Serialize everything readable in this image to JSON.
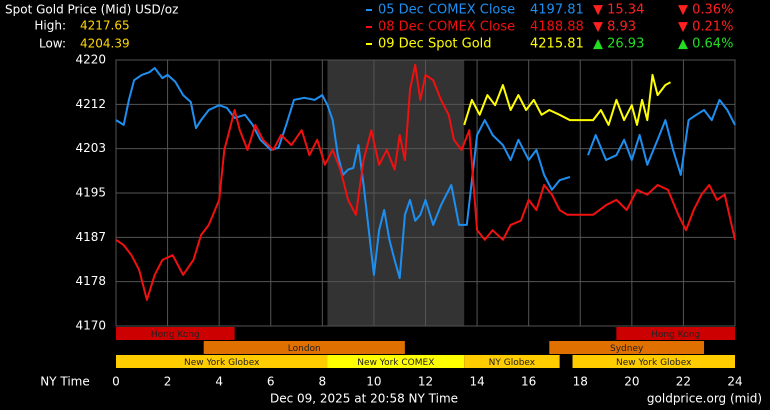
{
  "chart_data": {
    "type": "line",
    "title": "Spot Gold Price (Mid) USD/oz",
    "high_label": "High:",
    "high": 4217.65,
    "low_label": "Low:",
    "low": 4204.39,
    "x_label": "NY Time",
    "footer_date": "Dec 09, 2025 at 20:58 NY Time",
    "source": "goldprice.org (mid)",
    "xlim": [
      0,
      24
    ],
    "xticks": [
      0,
      2,
      4,
      6,
      8,
      10,
      12,
      14,
      16,
      18,
      20,
      22,
      24
    ],
    "ylim": [
      4170,
      4220
    ],
    "yticks": [
      4170,
      {
        "value": 4178.33,
        "label": "4178"
      },
      {
        "value": 4186.67,
        "label": "4187"
      },
      4195,
      {
        "value": 4203.33,
        "label": "4203"
      },
      {
        "value": 4211.67,
        "label": "4212"
      },
      4220
    ],
    "grid": true,
    "sessions": [
      {
        "name": "Hong Kong",
        "row": 0,
        "start": 0,
        "end": 4.6,
        "color": "#cc0000"
      },
      {
        "name": "Hong Kong",
        "row": 0,
        "start": 19.4,
        "end": 24,
        "color": "#cc0000"
      },
      {
        "name": "London",
        "row": 1,
        "start": 3.4,
        "end": 11.2,
        "color": "#e07000"
      },
      {
        "name": "Sydney",
        "row": 1,
        "start": 16.8,
        "end": 22.8,
        "color": "#e07000"
      },
      {
        "name": "New York Globex",
        "row": 2,
        "start": 0,
        "end": 8.2,
        "color": "#ffcc00"
      },
      {
        "name": "New York COMEX",
        "row": 2,
        "start": 8.2,
        "end": 13.5,
        "color": "#ffff00",
        "highlight": true
      },
      {
        "name": "NY Globex",
        "row": 2,
        "start": 13.5,
        "end": 17.2,
        "color": "#ffcc00"
      },
      {
        "name": "New York Globex",
        "row": 2,
        "start": 17.7,
        "end": 24,
        "color": "#ffcc00"
      }
    ],
    "series": [
      {
        "name": "05 Dec COMEX Close",
        "color": "#1e8ff0",
        "last": 4197.81,
        "change": "▼ 15.34",
        "change_pct": "▼ 0.36%",
        "change_color": "#ff2020",
        "x": [
          0,
          0.3,
          0.5,
          0.7,
          1,
          1.3,
          1.5,
          1.8,
          2,
          2.3,
          2.6,
          2.9,
          3.1,
          3.3,
          3.6,
          4,
          4.3,
          4.6,
          5,
          5.3,
          5.6,
          6,
          6.3,
          6.6,
          6.9,
          7.3,
          7.7,
          8,
          8.2,
          8.4,
          8.6,
          8.8,
          9,
          9.2,
          9.4,
          9.6,
          9.8,
          10,
          10.2,
          10.4,
          10.6,
          10.8,
          11,
          11.2,
          11.4,
          11.6,
          11.8,
          12,
          12.3,
          12.6,
          13,
          13.3,
          13.6,
          14,
          14.3,
          14.6,
          15,
          15.3,
          15.6,
          16,
          16.3,
          16.6,
          16.9,
          17.2,
          17.6,
          17.8,
          18.3,
          18.6,
          19,
          19.4,
          19.7,
          20,
          20.3,
          20.6,
          21,
          21.3,
          21.6,
          21.9,
          22.2,
          22.5,
          22.8,
          23.1,
          23.4,
          23.7,
          24
        ],
        "values": [
          4208.7,
          4207.8,
          4212.5,
          4216.2,
          4217.2,
          4217.7,
          4218.5,
          4216.6,
          4217.2,
          4215.9,
          4213.4,
          4212.1,
          4207.2,
          4208.7,
          4210.6,
          4211.5,
          4211,
          4209.1,
          4209.7,
          4207.8,
          4205,
          4203.1,
          4203.5,
          4207.8,
          4212.5,
          4212.9,
          4212.5,
          4213.4,
          4211.5,
          4208.7,
          4202.1,
          4198.4,
          4199.4,
          4199.7,
          4204,
          4196.5,
          4188,
          4179.6,
          4188,
          4191.8,
          4186.2,
          4182.4,
          4179,
          4190.9,
          4193.7,
          4189.8,
          4190.9,
          4193.7,
          4189,
          4192.7,
          4196.5,
          4189,
          4189,
          4205.9,
          4208.7,
          4205.9,
          4204,
          4201.2,
          4205,
          4201.2,
          4203.1,
          4198.4,
          4195.6,
          4197.4,
          4198,
          null,
          4202.1,
          4205.9,
          4201.2,
          4202.1,
          4205,
          4201.2,
          4205.9,
          4200.3,
          4205,
          4208.7,
          4203.1,
          4198.4,
          4208.7,
          4209.7,
          4210.6,
          4208.7,
          4212.5,
          4210.6,
          4207.8
        ]
      },
      {
        "name": "08 Dec COMEX Close",
        "color": "#f01010",
        "last": 4188.88,
        "change": "▼ 8.93",
        "change_pct": "▼ 0.21%",
        "change_color": "#ff2020",
        "x": [
          0,
          0.3,
          0.6,
          0.9,
          1.2,
          1.5,
          1.8,
          2.2,
          2.6,
          3,
          3.3,
          3.6,
          4,
          4.2,
          4.4,
          4.6,
          4.8,
          5.1,
          5.4,
          5.7,
          6.1,
          6.4,
          6.8,
          7.2,
          7.5,
          7.8,
          8.1,
          8.4,
          8.7,
          9,
          9.3,
          9.6,
          9.9,
          10.2,
          10.5,
          10.8,
          11,
          11.2,
          11.4,
          11.6,
          11.8,
          12,
          12.3,
          12.6,
          12.9,
          13.1,
          13.4,
          13.7,
          14,
          14.3,
          14.6,
          15,
          15.3,
          15.7,
          16,
          16.3,
          16.6,
          16.9,
          17.2,
          17.5,
          18.5,
          19,
          19.4,
          19.8,
          20.2,
          20.6,
          21,
          21.4,
          21.8,
          22.1,
          22.4,
          22.7,
          23,
          23.3,
          23.6,
          24
        ],
        "values": [
          4186.2,
          4185.2,
          4183.3,
          4180.5,
          4174.9,
          4179.6,
          4182.4,
          4183.3,
          4179.6,
          4182.4,
          4187.1,
          4189,
          4193.7,
          4203.1,
          4206.8,
          4210.6,
          4206.8,
          4203.1,
          4207.8,
          4205,
          4203.1,
          4205.9,
          4204,
          4206.8,
          4202.1,
          4205,
          4200.3,
          4203.1,
          4199.4,
          4193.7,
          4190.9,
          4201.2,
          4206.8,
          4200.3,
          4203.1,
          4199.4,
          4205.9,
          4201.2,
          4214.4,
          4219.1,
          4212.5,
          4217.2,
          4216.2,
          4212.5,
          4209.7,
          4205,
          4203.1,
          4206.8,
          4188,
          4186.2,
          4188,
          4186.2,
          4189,
          4189.8,
          4193.7,
          4191.8,
          4196.5,
          4194.7,
          4191.8,
          4190.9,
          4190.9,
          4192.7,
          4193.7,
          4191.8,
          4195.6,
          4194.7,
          4196.5,
          4195.6,
          4190.9,
          4188,
          4191.8,
          4194.7,
          4196.5,
          4193.7,
          4194.7,
          4186.2
        ]
      },
      {
        "name": "09 Dec Spot Gold",
        "color": "#ffff00",
        "last": 4215.81,
        "change": "▲ 26.93",
        "change_pct": "▲ 0.64%",
        "change_color": "#22dd22",
        "x": [
          13.5,
          13.8,
          14.1,
          14.4,
          14.7,
          15,
          15.3,
          15.6,
          15.9,
          16.2,
          16.5,
          16.8,
          17.2,
          17.6,
          18.5,
          18.8,
          19.1,
          19.4,
          19.7,
          20,
          20.2,
          20.4,
          20.6,
          20.8,
          21,
          21.3,
          21.5
        ],
        "values": [
          4207.8,
          4212.5,
          4209.7,
          4213.4,
          4211.5,
          4215.3,
          4210.6,
          4213.4,
          4210.6,
          4212.5,
          4209.7,
          4210.6,
          4209.7,
          4208.7,
          4208.7,
          4210.6,
          4207.8,
          4212.5,
          4208.7,
          4211.5,
          4207.8,
          4212.5,
          4208.7,
          4217.2,
          4213.4,
          4215.3,
          4215.81
        ]
      }
    ]
  }
}
